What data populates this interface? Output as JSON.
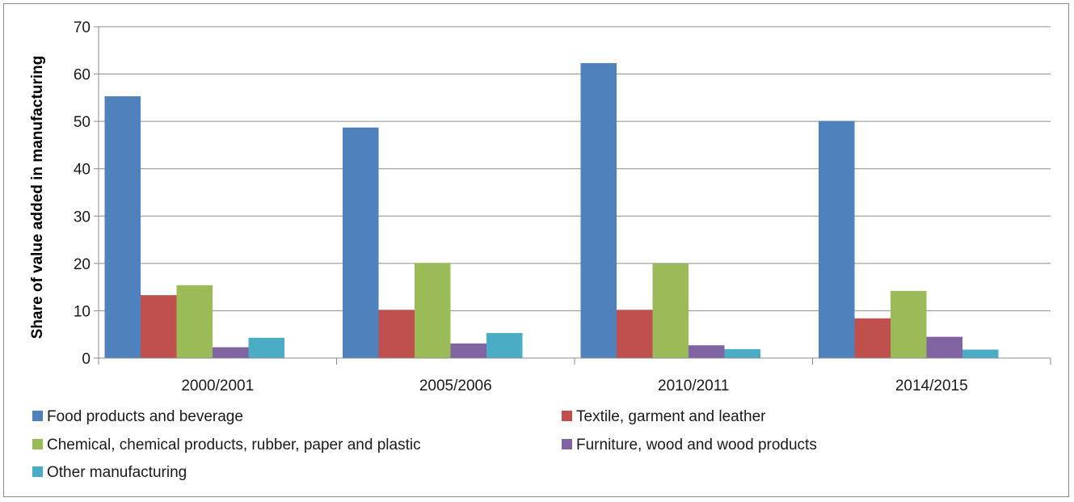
{
  "chart_data": {
    "type": "bar",
    "title": "",
    "xlabel": "",
    "ylabel": "Share of value added in manufacturing",
    "ylim": [
      0,
      70
    ],
    "yticks": [
      0,
      10,
      20,
      30,
      40,
      50,
      60,
      70
    ],
    "grid": true,
    "legend_position": "bottom",
    "categories": [
      "2000/2001",
      "2005/2006",
      "2010/2011",
      "2014/2015"
    ],
    "series": [
      {
        "name": "Food products and beverage",
        "color": "#4f81bd",
        "values": [
          55.3,
          48.7,
          62.3,
          50.1
        ]
      },
      {
        "name": "Textile, garment and leather",
        "color": "#c0504d",
        "values": [
          13.3,
          10.2,
          10.2,
          8.4
        ]
      },
      {
        "name": "Chemical, chemical products, rubber, paper and plastic",
        "color": "#9bbb59",
        "values": [
          15.4,
          20.1,
          19.9,
          14.2
        ]
      },
      {
        "name": "Furniture, wood and wood products",
        "color": "#8064a2",
        "values": [
          2.3,
          3.1,
          2.7,
          4.5
        ]
      },
      {
        "name": "Other manufacturing",
        "color": "#4bacc6",
        "values": [
          4.3,
          5.3,
          1.9,
          1.8
        ]
      }
    ]
  }
}
